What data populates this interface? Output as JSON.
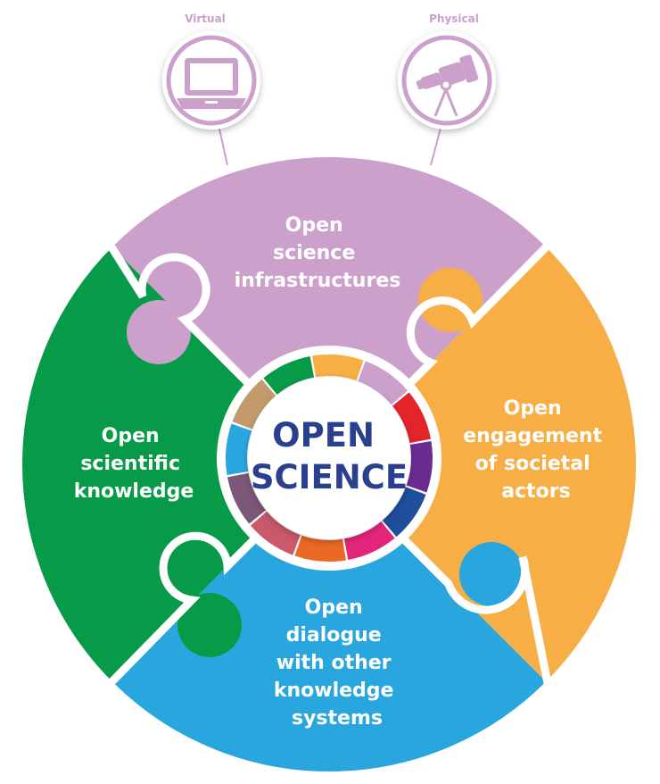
{
  "top_icons": {
    "virtual": {
      "label": "Virtual",
      "icon": "laptop-icon"
    },
    "physical": {
      "label": "Physical",
      "icon": "telescope-icon"
    }
  },
  "center": {
    "line1": "OPEN",
    "line2": "SCIENCE"
  },
  "segments": {
    "top": {
      "lines": [
        "Open",
        "science",
        "infrastructures"
      ],
      "color": "#cba1cc"
    },
    "right": {
      "lines": [
        "Open",
        "engagement",
        "of societal",
        "actors"
      ],
      "color": "#f6ae45"
    },
    "bottom": {
      "lines": [
        "Open",
        "dialogue",
        "with other",
        "knowledge",
        "systems"
      ],
      "color": "#2aa6df"
    },
    "left": {
      "lines": [
        "Open",
        "scientific",
        "knowledge"
      ],
      "color": "#079a48"
    }
  },
  "sdg_ring_colors": [
    "#f6ae45",
    "#cba1cc",
    "#e3242b",
    "#6a2c91",
    "#1f4e9c",
    "#e4267a",
    "#ea6a25",
    "#c9596b",
    "#7b5879",
    "#2aa6df",
    "#c29a6c",
    "#079a48"
  ]
}
